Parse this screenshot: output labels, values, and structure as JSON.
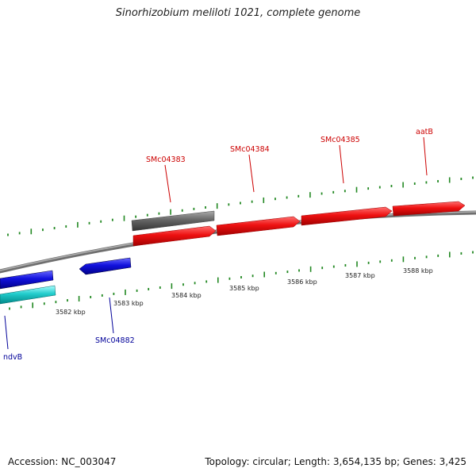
{
  "title": "Sinorhizobium meliloti 1021, complete genome",
  "footer": {
    "accession": "Accession: NC_003047",
    "summary": "Topology: circular; Length: 3,654,135 bp; Genes: 3,425"
  },
  "ruler": {
    "unit": "kbp",
    "labels": [
      "3582 kbp",
      "3583 kbp",
      "3584 kbp",
      "3585 kbp",
      "3586 kbp",
      "3587 kbp",
      "3588 kbp"
    ]
  },
  "genes": [
    {
      "name": "SMc04383",
      "strand": "forward",
      "color": "#ee1111"
    },
    {
      "name": "SMc04384",
      "strand": "forward",
      "color": "#ee1111"
    },
    {
      "name": "SMc04385",
      "strand": "forward",
      "color": "#ee1111"
    },
    {
      "name": "aatB",
      "strand": "forward",
      "color": "#ee1111"
    },
    {
      "name": "SMc04882",
      "strand": "reverse",
      "color": "#1111dd"
    },
    {
      "name": "ndvB",
      "strand": "reverse",
      "color": "#1111dd"
    }
  ],
  "colors": {
    "forward_gene": "#ee1111",
    "reverse_gene": "#1111dd",
    "rna_track": "#22cccc",
    "other_feature": "#666666",
    "backbone": "#888888",
    "tick": "#228822",
    "forward_label": "#cc0000",
    "reverse_label": "#000099"
  }
}
